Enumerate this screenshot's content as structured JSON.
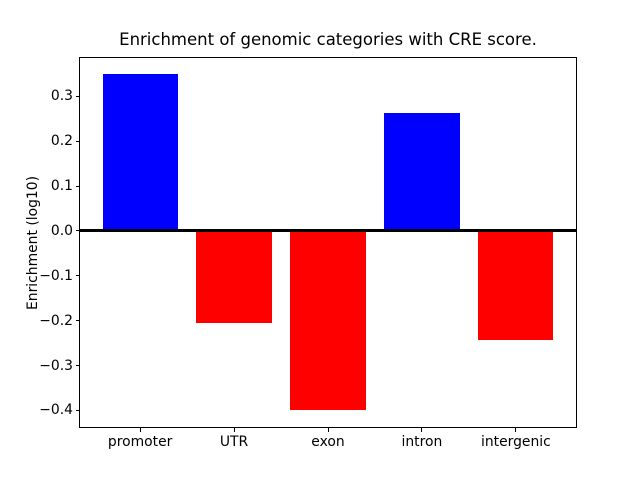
{
  "figure": {
    "background": "#ffffff"
  },
  "chart_data": {
    "type": "bar",
    "title": "Enrichment of genomic categories with CRE score.",
    "xlabel": "",
    "ylabel": "Enrichment (log10)",
    "categories": [
      "promoter",
      "UTR",
      "exon",
      "intron",
      "intergenic"
    ],
    "values": [
      0.35,
      -0.205,
      -0.4,
      0.263,
      -0.242
    ],
    "colors": {
      "positive": "#0000ff",
      "negative": "#ff0000",
      "axis": "#000000"
    },
    "ylim": [
      -0.4375,
      0.3865
    ],
    "bar_width_units": 0.8,
    "yticks": [
      {
        "label": "0.3",
        "value": 0.3
      },
      {
        "label": "0.2",
        "value": 0.2
      },
      {
        "label": "0.1",
        "value": 0.1
      },
      {
        "label": "0.0",
        "value": 0.0
      },
      {
        "label": "−0.1",
        "value": -0.1
      },
      {
        "label": "−0.2",
        "value": -0.2
      },
      {
        "label": "−0.3",
        "value": -0.3
      },
      {
        "label": "−0.4",
        "value": -0.4
      }
    ],
    "zero_line": true,
    "grid": false,
    "legend": "none"
  }
}
